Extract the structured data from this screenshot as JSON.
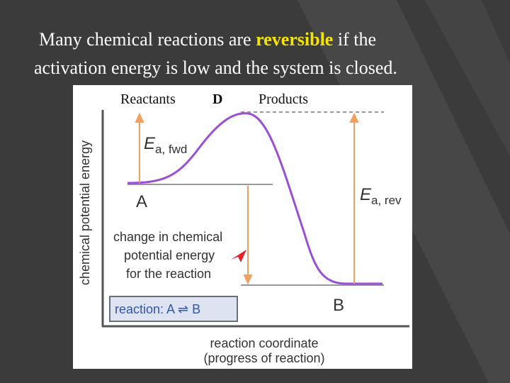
{
  "slide": {
    "title": {
      "line1_before": "Many chemical reactions are ",
      "highlight": "reversible",
      "line1_after": " if the",
      "line2": "activation energy is low and the system is closed."
    },
    "figure": {
      "header": {
        "left": "Reactants",
        "symbol": "D",
        "right": "Products"
      },
      "y_axis_label": "chemical potential energy",
      "x_axis_label": [
        "reaction coordinate",
        "(progress of reaction)"
      ],
      "ea_fwd": {
        "symbol": "E",
        "subscript": "a, fwd"
      },
      "ea_rev": {
        "symbol": "E",
        "subscript": "a, rev"
      },
      "state_a": "A",
      "state_b": "B",
      "change_label": [
        "change in chemical",
        "potential energy",
        "for the reaction"
      ],
      "reaction_box": "reaction: A ⇌ B"
    }
  }
}
